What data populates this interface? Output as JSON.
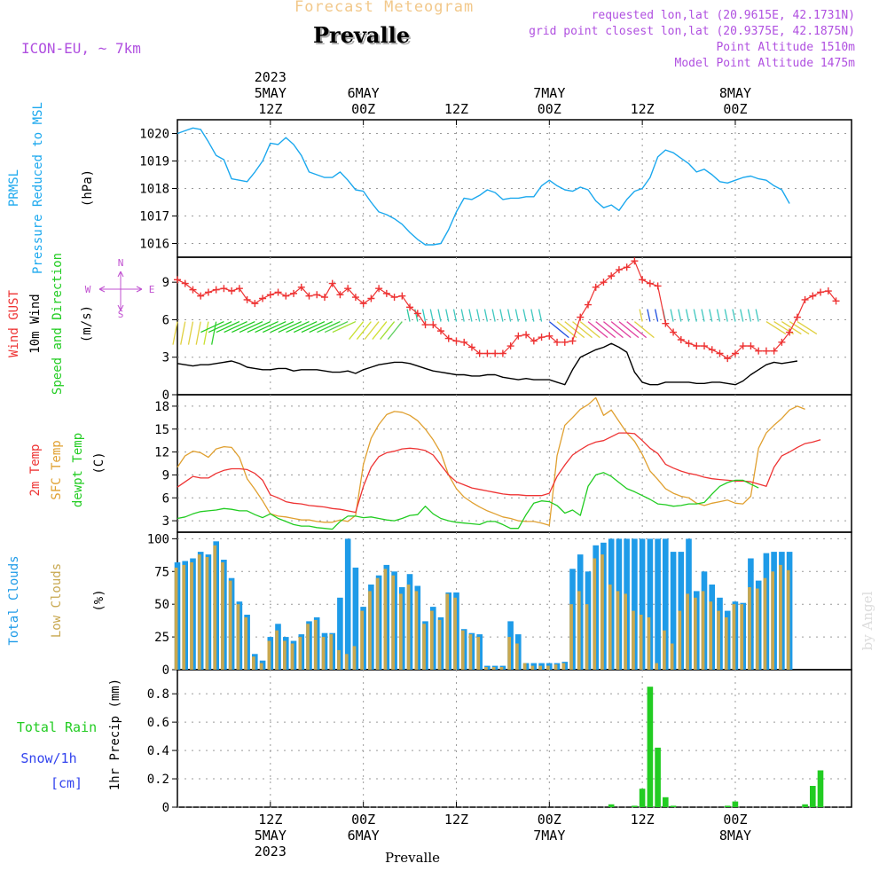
{
  "header": {
    "top_title": "Forecast Meteogram",
    "station": "Prevalle",
    "model": "ICON-EU, ~ 7km",
    "requested": "requested lon,lat (20.9615E, 42.1731N)",
    "grid_point": "grid point closest lon,lat (20.9375E, 42.1875N)",
    "point_altitude": "Point Altitude 1510m",
    "model_altitude": "Model Point Altitude 1475m",
    "bottom_label": "Prevalle",
    "watermark": "by Angel"
  },
  "colors": {
    "pressure": "#1ba8ee",
    "gust": "#ee3333",
    "wind": "#000000",
    "temp2m": "#ee3333",
    "sfc": "#e0a030",
    "dew": "#22cc22",
    "total_clouds": "#1e9be8",
    "low_clouds": "#c8a850",
    "rain": "#22cc22",
    "snow": "#3344ee",
    "header_purple": "#b050e0",
    "header_orange": "#f2c88a",
    "compass": "#c050d0"
  },
  "time_axis": {
    "top_ticks": [
      {
        "h": 12,
        "lines": [
          "2023",
          "5MAY",
          "12Z"
        ]
      },
      {
        "h": 24,
        "lines": [
          "6MAY",
          "00Z"
        ]
      },
      {
        "h": 36,
        "lines": [
          "12Z"
        ]
      },
      {
        "h": 48,
        "lines": [
          "7MAY",
          "00Z"
        ]
      },
      {
        "h": 60,
        "lines": [
          "12Z"
        ]
      },
      {
        "h": 72,
        "lines": [
          "8MAY",
          "00Z"
        ]
      }
    ],
    "bottom_ticks": [
      {
        "h": 12,
        "lines": [
          "12Z",
          "5MAY",
          "2023"
        ]
      },
      {
        "h": 24,
        "lines": [
          "00Z",
          "6MAY"
        ]
      },
      {
        "h": 36,
        "lines": [
          "12Z"
        ]
      },
      {
        "h": 48,
        "lines": [
          "00Z",
          "7MAY"
        ]
      },
      {
        "h": 60,
        "lines": [
          "12Z"
        ]
      },
      {
        "h": 72,
        "lines": [
          "00Z",
          "8MAY"
        ]
      }
    ]
  },
  "panel_labels": {
    "pressure": {
      "name": "PRMSL",
      "desc": "Pressure Reduced to MSL",
      "unit": "(hPa)"
    },
    "wind": {
      "gust": "Wind GUST",
      "wind": "10m Wind",
      "dir": "Speed and Direction",
      "unit": "(m/s)"
    },
    "compass": {
      "north": "N",
      "south": "S",
      "west": "W",
      "east": "E"
    },
    "temp": {
      "t2m": "2m Temp",
      "sfc": "SFC Temp",
      "dew": "dewpt Temp",
      "unit": "(C)"
    },
    "clouds": {
      "total": "Total Clouds",
      "low": "Low Clouds",
      "unit": "(%)"
    },
    "precip": {
      "rain": "Total  Rain",
      "snow": "Snow/1h",
      "snow_unit": "[cm]",
      "axis": "1hr Precip (mm)"
    }
  },
  "chart_data": [
    {
      "type": "line",
      "id": "pressure",
      "title": "PRMSL Pressure Reduced to MSL",
      "ylabel": "(hPa)",
      "ylim": [
        1015.5,
        1020.5
      ],
      "yticks": [
        1016,
        1017,
        1018,
        1019,
        1020
      ],
      "grid": true,
      "x_hours": [
        0,
        1,
        2,
        3,
        4,
        5,
        6,
        7,
        8,
        9,
        10,
        11,
        12,
        13,
        14,
        15,
        16,
        17,
        18,
        19,
        20,
        21,
        22,
        23,
        24,
        25,
        26,
        27,
        28,
        29,
        30,
        31,
        32,
        33,
        34,
        35,
        36,
        37,
        38,
        39,
        40,
        41,
        42,
        43,
        44,
        45,
        46,
        47,
        48,
        49,
        50,
        51,
        52,
        53,
        54,
        55,
        56,
        57,
        58,
        59,
        60,
        61,
        62,
        63,
        64,
        65,
        66,
        67,
        68,
        69,
        70,
        71,
        72,
        73,
        74,
        75,
        76,
        77,
        78,
        79,
        80,
        81,
        82,
        83,
        84,
        85,
        86,
        87
      ],
      "series": [
        {
          "name": "PRMSL",
          "values": [
            1020.0,
            1020.1,
            1020.2,
            1020.15,
            1019.7,
            1019.2,
            1019.05,
            1018.35,
            1018.3,
            1018.25,
            1018.6,
            1019.0,
            1019.65,
            1019.6,
            1019.85,
            1019.6,
            1019.2,
            1018.6,
            1018.5,
            1018.4,
            1018.4,
            1018.6,
            1018.3,
            1017.95,
            1017.9,
            1017.5,
            1017.15,
            1017.05,
            1016.9,
            1016.7,
            1016.4,
            1016.15,
            1015.95,
            1015.95,
            1016.0,
            1016.5,
            1017.15,
            1017.65,
            1017.6,
            1017.75,
            1017.95,
            1017.85,
            1017.6,
            1017.65,
            1017.65,
            1017.7,
            1017.7,
            1018.1,
            1018.3,
            1018.1,
            1017.95,
            1017.9,
            1018.05,
            1017.95,
            1017.55,
            1017.3,
            1017.4,
            1017.2,
            1017.6,
            1017.9,
            1018.0,
            1018.4,
            1019.15,
            1019.4,
            1019.3,
            1019.1,
            1018.9,
            1018.6,
            1018.7,
            1018.5,
            1018.25,
            1018.2,
            1018.3,
            1018.4,
            1018.45,
            1018.35,
            1018.3,
            1018.1,
            1017.95,
            1017.45,
            null,
            null,
            null,
            null,
            null,
            null,
            null,
            null
          ]
        }
      ]
    },
    {
      "type": "line",
      "id": "wind",
      "title": "Wind GUST / 10m Wind Speed and Direction",
      "ylabel": "(m/s)",
      "ylim": [
        0,
        11
      ],
      "yticks": [
        0,
        3,
        6,
        9
      ],
      "grid": true,
      "series": [
        {
          "name": "Wind GUST",
          "values": [
            9.2,
            8.9,
            8.4,
            7.9,
            8.2,
            8.4,
            8.5,
            8.3,
            8.5,
            7.6,
            7.3,
            7.7,
            8.0,
            8.2,
            7.9,
            8.1,
            8.6,
            7.9,
            8.0,
            7.8,
            8.9,
            8.0,
            8.5,
            7.8,
            7.3,
            7.7,
            8.5,
            8.1,
            7.8,
            7.9,
            7.0,
            6.5,
            5.6,
            5.6,
            5.1,
            4.5,
            4.3,
            4.2,
            3.8,
            3.3,
            3.3,
            3.3,
            3.3,
            3.9,
            4.7,
            4.8,
            4.3,
            4.6,
            4.7,
            4.2,
            4.2,
            4.3,
            6.2,
            7.2,
            8.6,
            9.0,
            9.5,
            10.0,
            10.2,
            10.7,
            9.2,
            8.9,
            8.7,
            5.7,
            5.0,
            4.4,
            4.1,
            3.9,
            3.9,
            3.6,
            3.3,
            2.9,
            3.3,
            3.9,
            3.9,
            3.5,
            3.5,
            3.5,
            4.2,
            5.0,
            6.2,
            7.6,
            7.9,
            8.2,
            8.3,
            7.5,
            null,
            null
          ]
        },
        {
          "name": "10m Wind",
          "values": [
            2.5,
            2.4,
            2.3,
            2.4,
            2.4,
            2.5,
            2.6,
            2.7,
            2.5,
            2.2,
            2.1,
            2.0,
            2.0,
            2.1,
            2.1,
            1.9,
            2.0,
            2.0,
            2.0,
            1.9,
            1.8,
            1.8,
            1.9,
            1.7,
            2.0,
            2.2,
            2.4,
            2.5,
            2.6,
            2.6,
            2.5,
            2.3,
            2.1,
            1.9,
            1.8,
            1.7,
            1.6,
            1.6,
            1.5,
            1.5,
            1.6,
            1.6,
            1.4,
            1.3,
            1.2,
            1.3,
            1.2,
            1.2,
            1.2,
            1.0,
            0.8,
            2.0,
            3.0,
            3.3,
            3.6,
            3.8,
            4.1,
            3.8,
            3.4,
            1.8,
            1.0,
            0.8,
            0.8,
            1.0,
            1.0,
            1.0,
            1.0,
            0.9,
            0.9,
            1.0,
            1.0,
            0.9,
            0.8,
            1.1,
            1.6,
            2.0,
            2.4,
            2.6,
            2.5,
            2.6,
            2.7,
            null,
            null,
            null,
            null,
            null,
            null,
            null
          ]
        }
      ]
    },
    {
      "type": "line",
      "id": "temperature",
      "title": "2m Temp / SFC Temp / dewpt Temp",
      "ylabel": "(C)",
      "ylim": [
        1.5,
        19.5
      ],
      "yticks": [
        3,
        6,
        9,
        12,
        15,
        18
      ],
      "grid": true,
      "series": [
        {
          "name": "2m Temp",
          "values": [
            7.4,
            8.1,
            8.8,
            8.6,
            8.6,
            9.2,
            9.6,
            9.8,
            9.8,
            9.7,
            9.2,
            8.3,
            6.4,
            6.0,
            5.5,
            5.3,
            5.2,
            5.0,
            4.9,
            4.8,
            4.6,
            4.5,
            4.3,
            4.1,
            7.5,
            10.0,
            11.4,
            11.9,
            12.1,
            12.4,
            12.5,
            12.4,
            12.2,
            11.6,
            10.3,
            9.0,
            8.1,
            7.7,
            7.3,
            7.1,
            6.9,
            6.7,
            6.5,
            6.4,
            6.4,
            6.3,
            6.3,
            6.3,
            6.6,
            8.8,
            10.3,
            11.6,
            12.3,
            12.9,
            13.3,
            13.5,
            14.0,
            14.5,
            14.5,
            14.4,
            13.5,
            12.5,
            11.8,
            10.4,
            9.9,
            9.5,
            9.2,
            9.0,
            8.7,
            8.5,
            8.4,
            8.3,
            8.2,
            8.2,
            8.1,
            7.8,
            7.5,
            10.0,
            11.5,
            12.0,
            12.6,
            13.1,
            13.3,
            13.6,
            null,
            null,
            null,
            null
          ]
        },
        {
          "name": "SFC Temp",
          "values": [
            10.0,
            11.5,
            12.1,
            11.9,
            11.3,
            12.4,
            12.7,
            12.6,
            11.3,
            8.5,
            7.1,
            5.6,
            3.9,
            3.6,
            3.5,
            3.3,
            3.1,
            3.1,
            2.9,
            2.8,
            2.8,
            3.1,
            2.9,
            3.7,
            10.4,
            13.8,
            15.6,
            16.9,
            17.3,
            17.2,
            16.8,
            16.1,
            15.0,
            13.6,
            11.9,
            9.0,
            7.2,
            6.1,
            5.4,
            4.8,
            4.3,
            3.9,
            3.5,
            3.3,
            3.0,
            2.9,
            2.9,
            2.7,
            2.4,
            11.5,
            15.5,
            16.5,
            17.6,
            18.2,
            19.1,
            16.8,
            17.5,
            16.0,
            14.5,
            13.4,
            11.7,
            9.5,
            8.4,
            7.2,
            6.6,
            6.2,
            6.0,
            5.3,
            5.0,
            5.3,
            5.5,
            5.7,
            5.3,
            5.2,
            6.2,
            12.5,
            14.5,
            15.5,
            16.4,
            17.5,
            18.0,
            17.6,
            null,
            null,
            null,
            null,
            null,
            null
          ]
        },
        {
          "name": "dewpt Temp",
          "values": [
            3.3,
            3.5,
            3.9,
            4.2,
            4.3,
            4.4,
            4.6,
            4.5,
            4.3,
            4.3,
            3.8,
            3.4,
            3.9,
            3.3,
            2.9,
            2.5,
            2.3,
            2.3,
            2.1,
            2.0,
            1.9,
            2.9,
            3.6,
            3.6,
            3.4,
            3.5,
            3.3,
            3.1,
            3.0,
            3.3,
            3.7,
            3.8,
            4.9,
            3.9,
            3.3,
            3.0,
            2.8,
            2.7,
            2.6,
            2.5,
            2.9,
            2.9,
            2.5,
            2.0,
            2.0,
            3.8,
            5.3,
            5.6,
            5.5,
            5.0,
            4.0,
            4.4,
            3.7,
            7.5,
            9.0,
            9.3,
            8.8,
            8.0,
            7.2,
            6.8,
            6.3,
            5.8,
            5.2,
            5.1,
            4.9,
            5.0,
            5.2,
            5.2,
            5.4,
            6.5,
            7.5,
            8.0,
            8.3,
            8.3,
            7.8,
            7.3,
            null,
            null,
            null,
            null,
            null,
            null,
            null,
            null,
            null,
            null,
            null,
            null
          ]
        }
      ]
    },
    {
      "type": "bar",
      "id": "clouds",
      "title": "Total Clouds / Low Clouds",
      "ylabel": "(%)",
      "ylim": [
        0,
        105
      ],
      "yticks": [
        0,
        25,
        50,
        75,
        100
      ],
      "grid": true,
      "series": [
        {
          "name": "Total Clouds",
          "values": [
            82,
            83,
            85,
            90,
            88,
            98,
            84,
            70,
            52,
            42,
            12,
            7,
            25,
            35,
            25,
            22,
            27,
            37,
            40,
            28,
            28,
            55,
            100,
            78,
            48,
            65,
            72,
            80,
            75,
            63,
            73,
            64,
            37,
            48,
            40,
            59,
            59,
            31,
            28,
            27,
            3,
            3,
            3,
            37,
            27,
            5,
            5,
            5,
            5,
            5,
            6,
            77,
            88,
            75,
            95,
            97,
            100,
            100,
            100,
            100,
            100,
            100,
            100,
            100,
            90,
            90,
            100,
            60,
            75,
            65,
            55,
            45,
            52,
            51,
            85,
            68,
            89,
            90,
            90,
            90,
            null,
            null,
            null,
            null,
            null,
            null,
            null,
            null
          ]
        },
        {
          "name": "Low Clouds",
          "values": [
            78,
            80,
            82,
            88,
            86,
            95,
            82,
            68,
            50,
            40,
            10,
            5,
            22,
            30,
            22,
            20,
            25,
            35,
            38,
            25,
            27,
            15,
            12,
            18,
            45,
            60,
            70,
            77,
            72,
            58,
            65,
            60,
            35,
            45,
            38,
            58,
            55,
            30,
            27,
            25,
            2,
            2,
            2,
            25,
            20,
            5,
            3,
            3,
            3,
            4,
            5,
            50,
            60,
            50,
            85,
            88,
            65,
            60,
            58,
            45,
            42,
            40,
            5,
            30,
            20,
            45,
            58,
            55,
            60,
            52,
            45,
            40,
            50,
            50,
            63,
            62,
            70,
            75,
            80,
            76,
            null,
            null,
            null,
            null,
            null,
            null,
            null,
            null
          ]
        }
      ]
    },
    {
      "type": "bar",
      "id": "precip",
      "title": "1hr Precip",
      "ylabel": "1hr Precip (mm)",
      "ylim": [
        0,
        0.97
      ],
      "yticks": [
        0,
        0.2,
        0.4,
        0.6,
        0.8
      ],
      "grid": true,
      "series": [
        {
          "name": "Total Rain",
          "values": [
            0,
            0,
            0,
            0,
            0,
            0,
            0,
            0,
            0,
            0,
            0,
            0,
            0,
            0,
            0,
            0,
            0,
            0,
            0,
            0,
            0,
            0,
            0,
            0,
            0,
            0,
            0,
            0,
            0,
            0,
            0,
            0,
            0,
            0,
            0,
            0,
            0,
            0,
            0,
            0,
            0,
            0,
            0,
            0,
            0,
            0,
            0,
            0,
            0,
            0,
            0,
            0,
            0,
            0,
            0,
            0,
            0.02,
            0,
            0,
            0.01,
            0.13,
            0.85,
            0.42,
            0.07,
            0.01,
            0,
            0,
            0,
            0,
            0,
            0,
            0.01,
            0.04,
            0,
            0,
            0,
            0,
            0,
            0,
            0,
            0,
            0.02,
            0.15,
            0.26,
            0,
            null,
            null,
            null
          ]
        }
      ]
    }
  ]
}
